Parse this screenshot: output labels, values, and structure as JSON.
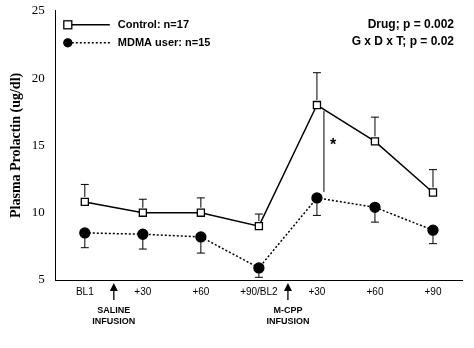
{
  "chart_data": {
    "type": "line",
    "y_label": "Plasma Prolactin (ug/dl)",
    "categories": [
      "BL1",
      "+30",
      "+60",
      "+90/BL2",
      "+30",
      "+60",
      "+90"
    ],
    "series": [
      {
        "name": "Control: n=17",
        "color": "#000000",
        "marker": "open_square",
        "line_style": "solid",
        "values": [
          10.8,
          10.0,
          10.0,
          9.0,
          18.0,
          15.3,
          11.5
        ],
        "errors": [
          1.3,
          1.0,
          1.1,
          0.9,
          2.4,
          1.8,
          1.7
        ]
      },
      {
        "name": "MDMA user: n=15",
        "color": "#000000",
        "marker": "filled_circle",
        "line_style": "dotted",
        "values": [
          8.5,
          8.4,
          8.2,
          5.9,
          11.1,
          10.4,
          8.7
        ],
        "errors": [
          1.1,
          1.1,
          1.2,
          0.7,
          1.3,
          1.1,
          1.0
        ]
      }
    ],
    "ylim": [
      5,
      25
    ],
    "yticks": [
      5,
      10,
      15,
      20,
      25
    ],
    "grid": false,
    "legend": "upper left",
    "annotations": [
      "Drug; p = 0.002",
      "G x D x T; p = 0.02",
      "*",
      "SALINE INFUSION",
      "M-CPP INFUSION"
    ]
  }
}
